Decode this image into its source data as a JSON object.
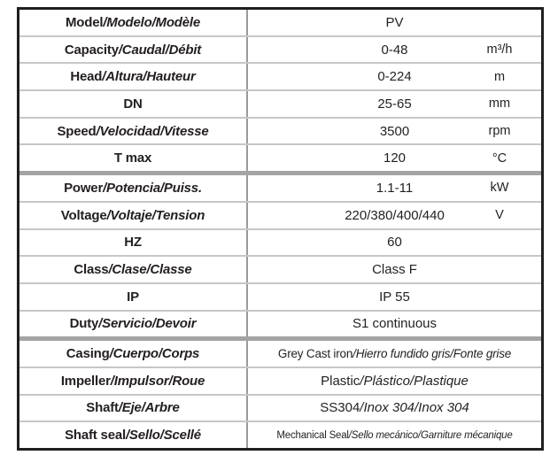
{
  "title": "Pump technical specification table",
  "colors": {
    "outer_border": "#211e1f",
    "thin_separator": "#c7c7c7",
    "thick_separator": "#a4a4a4",
    "column_divider": "#9b9b9b",
    "text": "#231f20",
    "background": "#ffffff"
  },
  "table": {
    "rows": [
      {
        "label": [
          {
            "text": "Model",
            "italic": false
          },
          {
            "text": "/Modelo/Modèle",
            "italic": true
          }
        ],
        "value": [
          {
            "text": "PV",
            "italic": false
          }
        ],
        "unit": "",
        "section_start": false,
        "value_size": "normal"
      },
      {
        "label": [
          {
            "text": "Capacity",
            "italic": false
          },
          {
            "text": "/Caudal/Débit",
            "italic": true
          }
        ],
        "value": [
          {
            "text": "0-48",
            "italic": false
          }
        ],
        "unit": "m³/h",
        "section_start": false,
        "value_size": "normal"
      },
      {
        "label": [
          {
            "text": "Head",
            "italic": false
          },
          {
            "text": "/Altura/Hauteur",
            "italic": true
          }
        ],
        "value": [
          {
            "text": "0-224",
            "italic": false
          }
        ],
        "unit": "m",
        "section_start": false,
        "value_size": "normal"
      },
      {
        "label": [
          {
            "text": "DN",
            "italic": false
          }
        ],
        "value": [
          {
            "text": "25-65",
            "italic": false
          }
        ],
        "unit": "mm",
        "section_start": false,
        "value_size": "normal"
      },
      {
        "label": [
          {
            "text": "Speed",
            "italic": false
          },
          {
            "text": "/Velocidad/Vitesse",
            "italic": true
          }
        ],
        "value": [
          {
            "text": "3500",
            "italic": false
          }
        ],
        "unit": "rpm",
        "section_start": false,
        "value_size": "normal"
      },
      {
        "label": [
          {
            "text": "T max",
            "italic": false
          }
        ],
        "value": [
          {
            "text": "120",
            "italic": false
          }
        ],
        "unit": "°C",
        "section_start": false,
        "value_size": "normal"
      },
      {
        "label": [
          {
            "text": "Power",
            "italic": false
          },
          {
            "text": "/Potencia/Puiss.",
            "italic": true
          }
        ],
        "value": [
          {
            "text": "1.1-11",
            "italic": false
          }
        ],
        "unit": "kW",
        "section_start": true,
        "value_size": "normal"
      },
      {
        "label": [
          {
            "text": "Voltage",
            "italic": false
          },
          {
            "text": "/Voltaje/Tension",
            "italic": true
          }
        ],
        "value": [
          {
            "text": "220/380/400/440",
            "italic": false
          }
        ],
        "unit": "V",
        "section_start": false,
        "value_size": "normal"
      },
      {
        "label": [
          {
            "text": "HZ",
            "italic": false
          }
        ],
        "value": [
          {
            "text": "60",
            "italic": false
          }
        ],
        "unit": "",
        "section_start": false,
        "value_size": "normal"
      },
      {
        "label": [
          {
            "text": "Class",
            "italic": false
          },
          {
            "text": "/Clase/Classe",
            "italic": true
          }
        ],
        "value": [
          {
            "text": "Class F",
            "italic": false
          }
        ],
        "unit": "",
        "section_start": false,
        "value_size": "normal"
      },
      {
        "label": [
          {
            "text": "IP",
            "italic": false
          }
        ],
        "value": [
          {
            "text": "IP 55",
            "italic": false
          }
        ],
        "unit": "",
        "section_start": false,
        "value_size": "normal"
      },
      {
        "label": [
          {
            "text": "Duty",
            "italic": false
          },
          {
            "text": "/Servicio/Devoir",
            "italic": true
          }
        ],
        "value": [
          {
            "text": "S1 continuous",
            "italic": false
          }
        ],
        "unit": "",
        "section_start": false,
        "value_size": "normal"
      },
      {
        "label": [
          {
            "text": "Casing",
            "italic": false
          },
          {
            "text": "/Cuerpo/Corps",
            "italic": true
          }
        ],
        "value": [
          {
            "text": "Grey Cast iron",
            "italic": false
          },
          {
            "text": "/Hierro fundido gris/Fonte grise",
            "italic": true
          }
        ],
        "unit": "",
        "section_start": true,
        "value_size": "medium"
      },
      {
        "label": [
          {
            "text": "Impeller",
            "italic": false
          },
          {
            "text": "/Impulsor/Roue",
            "italic": true
          }
        ],
        "value": [
          {
            "text": "Plastic",
            "italic": false
          },
          {
            "text": "/Plástico/Plastique",
            "italic": true
          }
        ],
        "unit": "",
        "section_start": false,
        "value_size": "normal"
      },
      {
        "label": [
          {
            "text": "Shaft",
            "italic": false
          },
          {
            "text": "/Eje/Arbre",
            "italic": true
          }
        ],
        "value": [
          {
            "text": "SS304",
            "italic": false
          },
          {
            "text": "/Inox 304/Inox 304",
            "italic": true
          }
        ],
        "unit": "",
        "section_start": false,
        "value_size": "normal"
      },
      {
        "label": [
          {
            "text": "Shaft seal",
            "italic": false
          },
          {
            "text": "/Sello/Scellé",
            "italic": true
          }
        ],
        "value": [
          {
            "text": "Mechanical Seal",
            "italic": false
          },
          {
            "text": "/Sello mecánico/Garniture mécanique",
            "italic": true
          }
        ],
        "unit": "",
        "section_start": false,
        "value_size": "small"
      }
    ]
  }
}
